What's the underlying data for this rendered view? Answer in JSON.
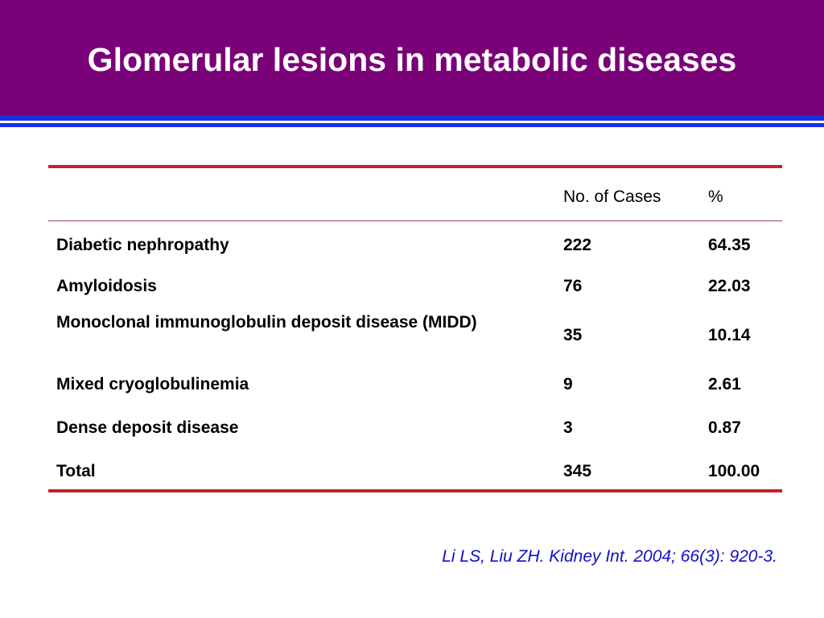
{
  "slide": {
    "title": "Glomerular lesions in metabolic diseases",
    "colors": {
      "header_bg": "#7a0078",
      "stripe": "#1a2fe0",
      "rule": "#c8202a",
      "citation": "#1010c8"
    }
  },
  "table": {
    "header": {
      "cases": "No. of Cases",
      "percent": "%"
    },
    "rows": [
      {
        "name": "Diabetic nephropathy",
        "cases": "222",
        "percent": "64.35"
      },
      {
        "name": "Amyloidosis",
        "cases": "76",
        "percent": "22.03"
      },
      {
        "name": "Monoclonal immunoglobulin deposit disease (MIDD)",
        "cases": "35",
        "percent": "10.14"
      },
      {
        "name": "Mixed cryoglobulinemia",
        "cases": "9",
        "percent": "2.61"
      },
      {
        "name": "Dense deposit disease",
        "cases": "3",
        "percent": "0.87"
      },
      {
        "name": "Total",
        "cases": "345",
        "percent": "100.00"
      }
    ]
  },
  "citation": "Li LS, Liu ZH. Kidney Int. 2004; 66(3): 920-3."
}
